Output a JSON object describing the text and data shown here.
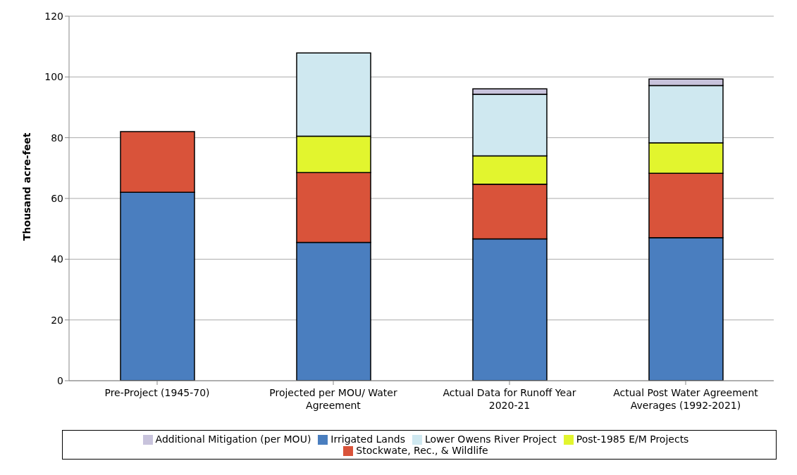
{
  "chart_data": {
    "type": "bar",
    "stacked": true,
    "ylabel": "Thousand acre-feet",
    "categories": [
      "Pre-Project (1945-70)",
      "Projected per MOU/ Water Agreement",
      "Actual Data for Runoff Year 2020-21",
      "Actual Post Water Agreement Averages (1992-2021)"
    ],
    "series": [
      {
        "name": "Irrigated Lands",
        "color": "#4a7ebf",
        "values": [
          62,
          45.5,
          46.7,
          47.1
        ]
      },
      {
        "name": "Stockwate, Rec., & Wildlife",
        "color": "#d9533a",
        "values": [
          20,
          23,
          18,
          21.2
        ]
      },
      {
        "name": "Post-1985 E/M Projects",
        "color": "#e2f52e",
        "values": [
          null,
          12,
          9.3,
          10
        ]
      },
      {
        "name": "Lower Owens River Project",
        "color": "#cfe8f0",
        "values": [
          null,
          27.4,
          20.3,
          18.9
        ]
      },
      {
        "name": "Additional Mitigation (per MOU)",
        "color": "#c8c3dc",
        "values": [
          null,
          null,
          1.8,
          2.1
        ]
      }
    ],
    "ylim": [
      0,
      120
    ],
    "yticks": [
      0,
      20,
      40,
      60,
      80,
      100,
      120
    ],
    "grid": "y",
    "legend": "bottom"
  }
}
